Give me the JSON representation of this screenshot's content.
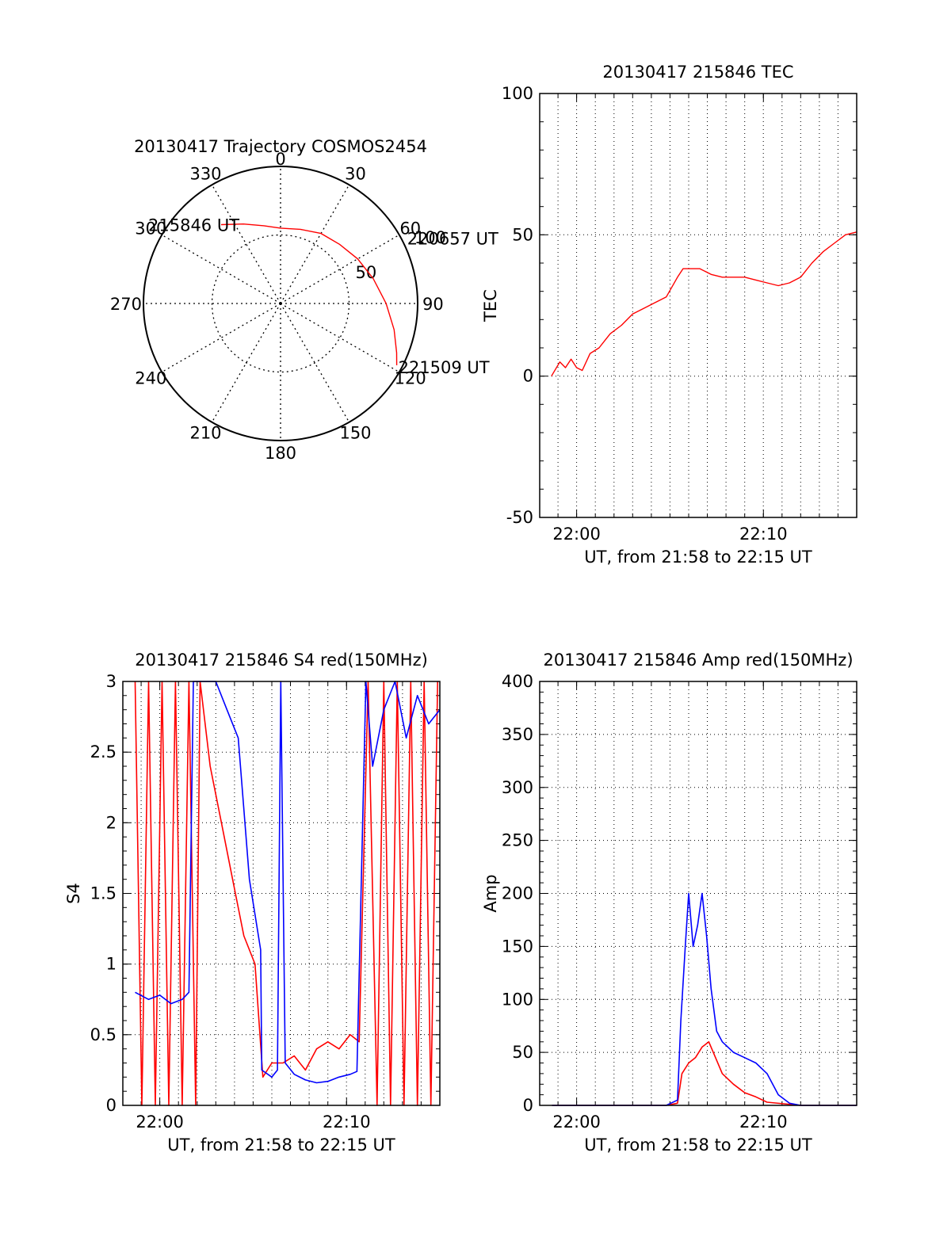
{
  "chart_data": [
    {
      "type": "polar-trajectory",
      "title": "20130417 Trajectory COSMOS2454",
      "azimuth_labels": [
        "0",
        "30",
        "60",
        "90",
        "120",
        "150",
        "180",
        "210",
        "240",
        "270",
        "300",
        "330"
      ],
      "radius_labels": [
        "50",
        "100"
      ],
      "elevation_rings": [
        50,
        100
      ],
      "grid": true,
      "series": [
        {
          "color": "#ff0000",
          "points": [
            {
              "azimuth": 323,
              "r": 72
            },
            {
              "azimuth": 335,
              "r": 64
            },
            {
              "azimuth": 348,
              "r": 58
            },
            {
              "azimuth": 0,
              "r": 55
            },
            {
              "azimuth": 15,
              "r": 56
            },
            {
              "azimuth": 30,
              "r": 59
            },
            {
              "azimuth": 45,
              "r": 61
            },
            {
              "azimuth": 60,
              "r": 65
            },
            {
              "azimuth": 75,
              "r": 70
            },
            {
              "azimuth": 90,
              "r": 77
            },
            {
              "azimuth": 103,
              "r": 85
            },
            {
              "azimuth": 113,
              "r": 92
            },
            {
              "azimuth": 118,
              "r": 96
            }
          ]
        }
      ],
      "annotations": [
        {
          "text": "215846 UT",
          "azimuth": 323,
          "r": 72
        },
        {
          "text": "220657 UT",
          "azimuth": 58,
          "r": 68
        },
        {
          "text": "221509 UT",
          "azimuth": 118,
          "r": 96
        }
      ]
    },
    {
      "type": "line",
      "title": "20130417 215846 TEC",
      "xlabel": "UT, from 21:58 to 22:15 UT",
      "ylabel": "TEC",
      "xlim": [
        21.967,
        22.25
      ],
      "ylim": [
        -50,
        100
      ],
      "yticks": [
        -50,
        0,
        50,
        100
      ],
      "xticks": [
        {
          "v": 22.0,
          "label": "22:00"
        },
        {
          "v": 22.1667,
          "label": "22:10"
        }
      ],
      "grid": true,
      "series": [
        {
          "color": "#ff0000",
          "x": [
            21.9775,
            21.985,
            21.99,
            21.995,
            22.0,
            22.005,
            22.012,
            22.02,
            22.03,
            22.04,
            22.05,
            22.06,
            22.07,
            22.08,
            22.09,
            22.095,
            22.1,
            22.11,
            22.12,
            22.13,
            22.14,
            22.15,
            22.16,
            22.17,
            22.18,
            22.19,
            22.2,
            22.21,
            22.22,
            22.23,
            22.24,
            22.25
          ],
          "y": [
            0,
            5,
            3,
            6,
            3,
            2,
            8,
            10,
            15,
            18,
            22,
            24,
            26,
            28,
            35,
            38,
            38,
            38,
            36,
            35,
            35,
            35,
            34,
            33,
            32,
            33,
            35,
            40,
            44,
            47,
            50,
            51
          ]
        }
      ]
    },
    {
      "type": "line",
      "title": "20130417 215846 S4 red(150MHz)",
      "xlabel": "UT, from 21:58 to 22:15 UT",
      "ylabel": "S4",
      "xlim": [
        21.967,
        22.25
      ],
      "ylim": [
        0,
        3
      ],
      "yticks": [
        0,
        0.5,
        1,
        1.5,
        2,
        2.5,
        3
      ],
      "xticks": [
        {
          "v": 22.0,
          "label": "22:00"
        },
        {
          "v": 22.1667,
          "label": "22:10"
        }
      ],
      "grid": true,
      "series": [
        {
          "color": "#ff0000",
          "x": [
            21.978,
            21.984,
            21.99,
            21.996,
            22.002,
            22.008,
            22.014,
            22.02,
            22.026,
            22.032,
            22.036,
            22.045,
            22.055,
            22.065,
            22.075,
            22.085,
            22.092,
            22.1,
            22.11,
            22.12,
            22.13,
            22.14,
            22.15,
            22.16,
            22.17,
            22.178,
            22.186,
            22.194,
            22.2,
            22.206,
            22.212,
            22.218,
            22.224,
            22.23,
            22.236,
            22.242,
            22.248
          ],
          "y": [
            3,
            0,
            3,
            0,
            3,
            0,
            3,
            0,
            3,
            0,
            3,
            2.4,
            2.0,
            1.6,
            1.2,
            1.0,
            0.2,
            0.3,
            0.3,
            0.35,
            0.25,
            0.4,
            0.45,
            0.4,
            0.5,
            0.45,
            3,
            0,
            3,
            0,
            3,
            0,
            3,
            0,
            3,
            0,
            3
          ]
        },
        {
          "color": "#0000ff",
          "x": [
            21.978,
            21.99,
            22.0,
            22.01,
            22.02,
            22.026,
            22.03,
            22.04,
            22.05,
            22.06,
            22.07,
            22.08,
            22.09,
            22.091,
            22.1,
            22.105,
            22.108,
            22.112,
            22.12,
            22.13,
            22.14,
            22.15,
            22.16,
            22.17,
            22.176,
            22.184,
            22.19,
            22.2,
            22.21,
            22.22,
            22.23,
            22.24,
            22.25
          ],
          "y": [
            0.8,
            0.75,
            0.78,
            0.72,
            0.75,
            0.8,
            3,
            3,
            3,
            2.8,
            2.6,
            1.6,
            1.1,
            0.25,
            0.2,
            0.25,
            3,
            0.3,
            0.22,
            0.18,
            0.16,
            0.17,
            0.2,
            0.22,
            0.24,
            3,
            2.4,
            2.8,
            3,
            2.6,
            2.9,
            2.7,
            2.8
          ]
        }
      ]
    },
    {
      "type": "line",
      "title": "20130417 215846 Amp red(150MHz)",
      "xlabel": "UT, from 21:58 to 22:15 UT",
      "ylabel": "Amp",
      "xlim": [
        21.967,
        22.25
      ],
      "ylim": [
        0,
        400
      ],
      "yticks": [
        0,
        50,
        100,
        150,
        200,
        250,
        300,
        350,
        400
      ],
      "xticks": [
        {
          "v": 22.0,
          "label": "22:00"
        },
        {
          "v": 22.1667,
          "label": "22:10"
        }
      ],
      "grid": true,
      "series": [
        {
          "color": "#ff0000",
          "x": [
            21.978,
            22.08,
            22.09,
            22.094,
            22.1,
            22.106,
            22.112,
            22.118,
            22.124,
            22.13,
            22.14,
            22.15,
            22.16,
            22.17,
            22.2,
            22.25
          ],
          "y": [
            0,
            0,
            2,
            30,
            40,
            45,
            55,
            60,
            45,
            30,
            20,
            12,
            8,
            3,
            0,
            0
          ]
        },
        {
          "color": "#0000ff",
          "x": [
            21.978,
            22.08,
            22.09,
            22.093,
            22.097,
            22.1,
            22.104,
            22.108,
            22.112,
            22.116,
            22.12,
            22.125,
            22.13,
            22.14,
            22.15,
            22.16,
            22.17,
            22.18,
            22.19,
            22.2,
            22.25
          ],
          "y": [
            0,
            0,
            5,
            80,
            150,
            200,
            150,
            170,
            200,
            160,
            110,
            70,
            60,
            50,
            45,
            40,
            30,
            10,
            2,
            0,
            0
          ]
        }
      ]
    }
  ]
}
